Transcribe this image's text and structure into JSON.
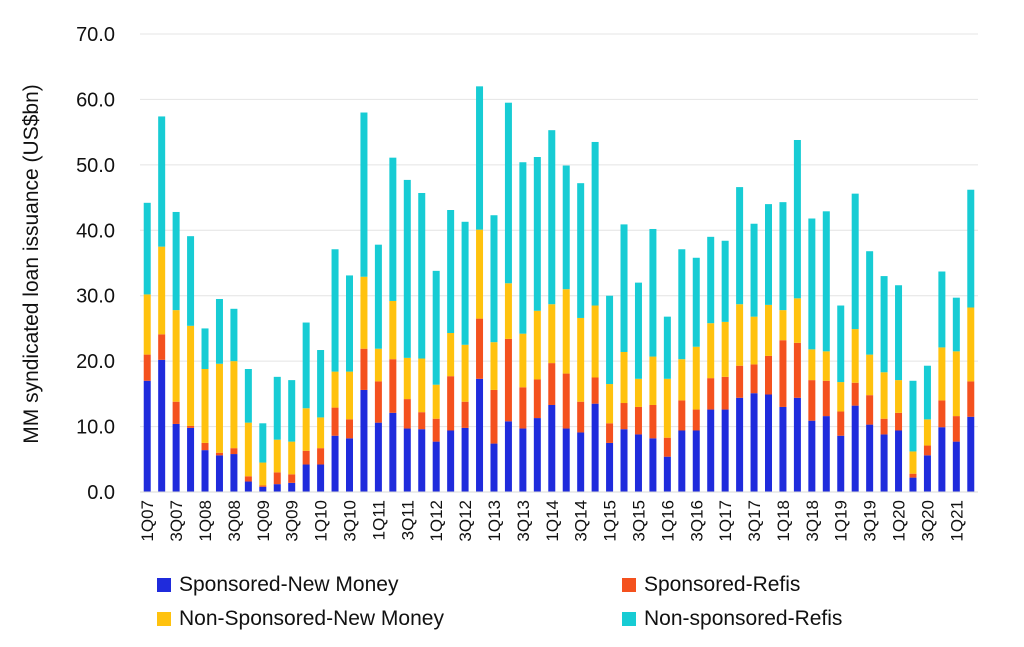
{
  "chart_data": {
    "type": "bar",
    "stacked": true,
    "title": "",
    "xlabel": "",
    "ylabel": "MM syndicated loan issuance (US$bn)",
    "ylim": [
      0,
      70
    ],
    "yticks": [
      "0.0",
      "10.0",
      "20.0",
      "30.0",
      "40.0",
      "50.0",
      "60.0",
      "70.0"
    ],
    "ytick_values": [
      0,
      10,
      20,
      30,
      40,
      50,
      60,
      70
    ],
    "categories": [
      "1Q07",
      "2Q07",
      "3Q07",
      "4Q07",
      "1Q08",
      "2Q08",
      "3Q08",
      "4Q08",
      "1Q09",
      "2Q09",
      "3Q09",
      "4Q09",
      "1Q10",
      "2Q10",
      "3Q10",
      "4Q10",
      "1Q11",
      "2Q11",
      "3Q11",
      "4Q11",
      "1Q12",
      "2Q12",
      "3Q12",
      "4Q12",
      "1Q13",
      "2Q13",
      "3Q13",
      "4Q13",
      "1Q14",
      "2Q14",
      "3Q14",
      "4Q14",
      "1Q15",
      "2Q15",
      "3Q15",
      "4Q15",
      "1Q16",
      "2Q16",
      "3Q16",
      "4Q16",
      "1Q17",
      "2Q17",
      "3Q17",
      "4Q17",
      "1Q18",
      "2Q18",
      "3Q18",
      "4Q18",
      "1Q19",
      "2Q19",
      "3Q19",
      "4Q19",
      "1Q20",
      "2Q20",
      "3Q20",
      "4Q20",
      "1Q21",
      "2Q21"
    ],
    "tick_labels": [
      "1Q07",
      "3Q07",
      "1Q08",
      "3Q08",
      "1Q09",
      "3Q09",
      "1Q10",
      "3Q10",
      "1Q11",
      "3Q11",
      "1Q12",
      "3Q12",
      "1Q13",
      "3Q13",
      "1Q14",
      "3Q14",
      "1Q15",
      "3Q15",
      "1Q16",
      "3Q16",
      "1Q17",
      "3Q17",
      "1Q18",
      "3Q18",
      "1Q19",
      "3Q19",
      "1Q20",
      "3Q20",
      "1Q21"
    ],
    "series": [
      {
        "name": "Sponsored-New Money",
        "color": "#1f2bdc",
        "values": [
          17.0,
          20.2,
          10.4,
          9.8,
          6.4,
          5.6,
          5.8,
          1.6,
          0.8,
          1.2,
          1.4,
          4.2,
          4.2,
          8.6,
          8.2,
          15.6,
          10.6,
          12.1,
          9.7,
          9.6,
          7.7,
          9.4,
          9.8,
          17.3,
          7.4,
          10.8,
          9.7,
          11.3,
          13.3,
          9.7,
          9.1,
          13.5,
          7.5,
          9.6,
          8.8,
          8.2,
          5.4,
          9.4,
          9.4,
          12.6,
          12.6,
          14.4,
          15.1,
          14.9,
          13.0,
          14.4,
          10.9,
          11.6,
          8.6,
          13.2,
          10.3,
          8.8,
          9.4,
          2.2,
          5.6,
          9.9,
          7.7,
          11.5
        ]
      },
      {
        "name": "Sponsored-Refis",
        "color": "#f4511e",
        "values": [
          4.0,
          3.9,
          3.4,
          0.3,
          1.1,
          0.4,
          0.9,
          0.8,
          0.2,
          1.8,
          1.3,
          2.1,
          2.5,
          4.3,
          2.9,
          6.3,
          6.3,
          8.2,
          4.5,
          2.6,
          3.5,
          8.3,
          4.0,
          9.2,
          8.2,
          12.6,
          6.3,
          5.9,
          6.4,
          8.4,
          4.7,
          4.0,
          3.0,
          4.0,
          4.2,
          5.1,
          2.9,
          4.6,
          3.2,
          4.8,
          5.0,
          4.9,
          4.4,
          5.9,
          10.2,
          8.4,
          6.2,
          5.4,
          3.7,
          3.5,
          4.5,
          2.4,
          2.7,
          0.6,
          1.5,
          4.1,
          3.9,
          5.4
        ]
      },
      {
        "name": "Non-Sponsored-New Money",
        "color": "#ffc20e",
        "values": [
          9.2,
          13.4,
          14.0,
          15.3,
          11.3,
          13.6,
          13.3,
          8.2,
          3.5,
          5.0,
          5.0,
          6.5,
          4.7,
          5.5,
          7.3,
          11.0,
          5.0,
          8.9,
          6.3,
          8.2,
          5.2,
          6.6,
          8.7,
          13.6,
          7.3,
          8.5,
          8.2,
          10.5,
          9.0,
          12.9,
          12.8,
          11.0,
          6.0,
          7.8,
          4.3,
          7.4,
          9.0,
          6.3,
          9.6,
          8.4,
          8.4,
          9.4,
          7.3,
          7.8,
          4.6,
          6.8,
          4.7,
          4.5,
          4.5,
          8.2,
          6.2,
          7.1,
          5.0,
          3.4,
          4.0,
          8.1,
          9.9,
          11.3
        ]
      },
      {
        "name": "Non-sponsored-Refis",
        "color": "#17ccd4",
        "values": [
          14.0,
          19.9,
          15.0,
          13.7,
          6.2,
          9.9,
          8.0,
          8.2,
          6.0,
          9.6,
          9.4,
          13.1,
          10.3,
          18.7,
          14.7,
          25.1,
          15.9,
          21.9,
          27.2,
          25.3,
          17.4,
          18.8,
          18.8,
          21.9,
          19.4,
          27.6,
          26.2,
          23.5,
          26.6,
          18.9,
          20.6,
          25.0,
          13.5,
          19.5,
          14.7,
          19.5,
          9.5,
          16.8,
          13.6,
          13.2,
          12.4,
          17.9,
          14.2,
          15.4,
          16.5,
          24.2,
          20.0,
          21.4,
          11.7,
          20.7,
          15.8,
          14.7,
          14.5,
          10.8,
          8.2,
          11.6,
          8.2,
          18.0
        ]
      }
    ],
    "legend": {
      "position": "bottom",
      "items": [
        "Sponsored-New Money",
        "Sponsored-Refis",
        "Non-Sponsored-New Money",
        "Non-sponsored-Refis"
      ]
    },
    "grid": "horizontal"
  }
}
